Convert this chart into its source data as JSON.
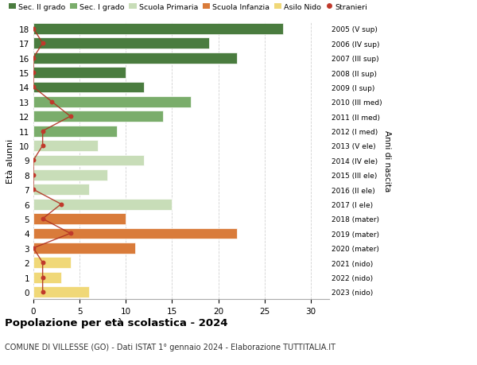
{
  "ages": [
    18,
    17,
    16,
    15,
    14,
    13,
    12,
    11,
    10,
    9,
    8,
    7,
    6,
    5,
    4,
    3,
    2,
    1,
    0
  ],
  "years": [
    "2005 (V sup)",
    "2006 (IV sup)",
    "2007 (III sup)",
    "2008 (II sup)",
    "2009 (I sup)",
    "2010 (III med)",
    "2011 (II med)",
    "2012 (I med)",
    "2013 (V ele)",
    "2014 (IV ele)",
    "2015 (III ele)",
    "2016 (II ele)",
    "2017 (I ele)",
    "2018 (mater)",
    "2019 (mater)",
    "2020 (mater)",
    "2021 (nido)",
    "2022 (nido)",
    "2023 (nido)"
  ],
  "bar_values": [
    27,
    19,
    22,
    10,
    12,
    17,
    14,
    9,
    7,
    12,
    8,
    6,
    15,
    10,
    22,
    11,
    4,
    3,
    6
  ],
  "stranieri_values": [
    0,
    1,
    0,
    0,
    0,
    2,
    4,
    1,
    1,
    0,
    0,
    0,
    3,
    1,
    4,
    0,
    1,
    1,
    1
  ],
  "bar_colors": [
    "#4a7c3f",
    "#4a7c3f",
    "#4a7c3f",
    "#4a7c3f",
    "#4a7c3f",
    "#7aad6b",
    "#7aad6b",
    "#7aad6b",
    "#c8ddb8",
    "#c8ddb8",
    "#c8ddb8",
    "#c8ddb8",
    "#c8ddb8",
    "#d97b3a",
    "#d97b3a",
    "#d97b3a",
    "#f0d878",
    "#f0d878",
    "#f0d878"
  ],
  "legend_labels": [
    "Sec. II grado",
    "Sec. I grado",
    "Scuola Primaria",
    "Scuola Infanzia",
    "Asilo Nido",
    "Stranieri"
  ],
  "legend_colors": [
    "#4a7c3f",
    "#7aad6b",
    "#c8ddb8",
    "#d97b3a",
    "#f0d878",
    "#c0392b"
  ],
  "stranieri_color": "#c0392b",
  "stranieri_line_color": "#b03020",
  "ylabel": "Età alunni",
  "ylabel2": "Anni di nascita",
  "title": "Popolazione per età scolastica - 2024",
  "subtitle": "COMUNE DI VILLESSE (GO) - Dati ISTAT 1° gennaio 2024 - Elaborazione TUTTITALIA.IT",
  "xlim": [
    0,
    32
  ],
  "background_color": "#ffffff",
  "grid_color": "#cccccc"
}
